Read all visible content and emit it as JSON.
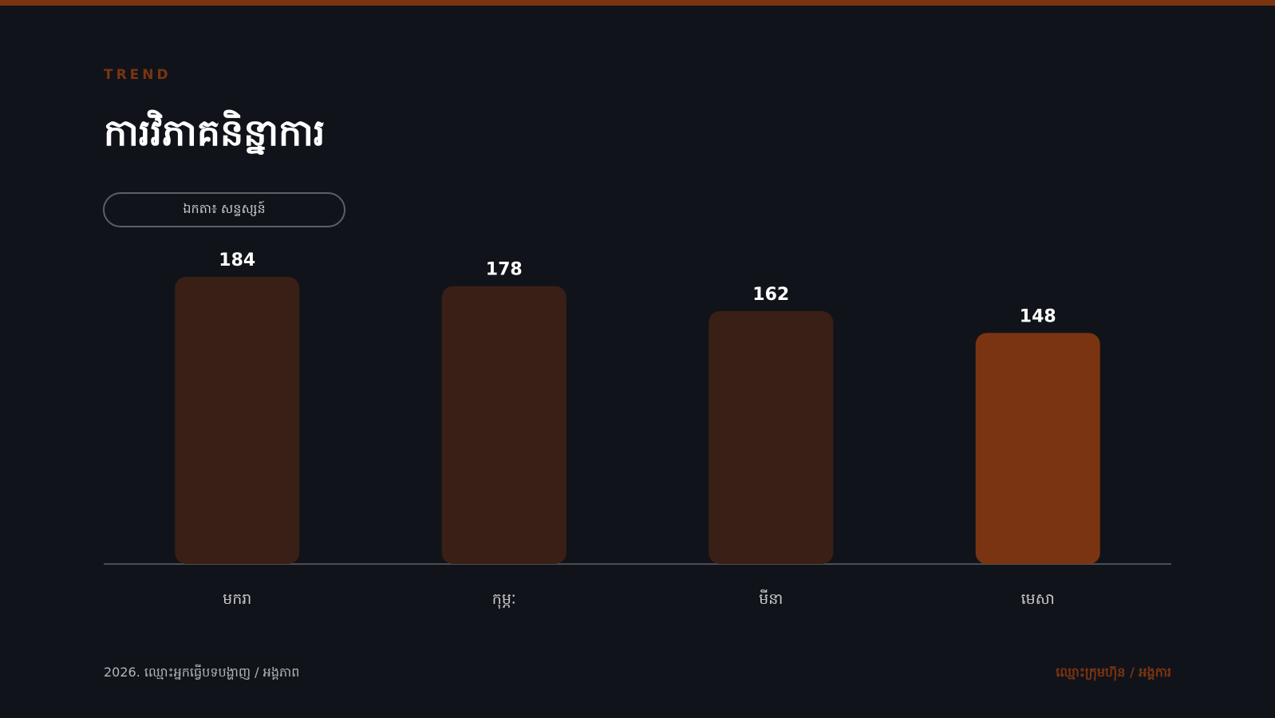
{
  "header": {
    "eyebrow": "TREND",
    "title": "ការវិភាគនិន្នាការ",
    "unit": "ឯកតា៖ សន្ទស្សន៍"
  },
  "footer": {
    "left": "2026. ឈ្មោះអ្នកធ្វើបទបង្ហាញ / អង្គភាព",
    "right": "ឈ្មោះក្រុមហ៊ុន / អង្គការ"
  },
  "colors": {
    "background": "#11131a",
    "accent": "#7b3411",
    "bar_default": "#3a1f16",
    "bar_highlight": "#7b3411",
    "value_label": "#ffffff",
    "category_label": "#c9cacd",
    "baseline": "#4a4d55"
  },
  "chart_data": {
    "type": "bar",
    "categories": [
      "មករា",
      "កុម្ភៈ",
      "មីនា",
      "មេសា"
    ],
    "values": [
      184,
      178,
      162,
      148
    ],
    "highlight_index": 3,
    "ylim": [
      0,
      184
    ],
    "grid": false,
    "legend": "none"
  }
}
